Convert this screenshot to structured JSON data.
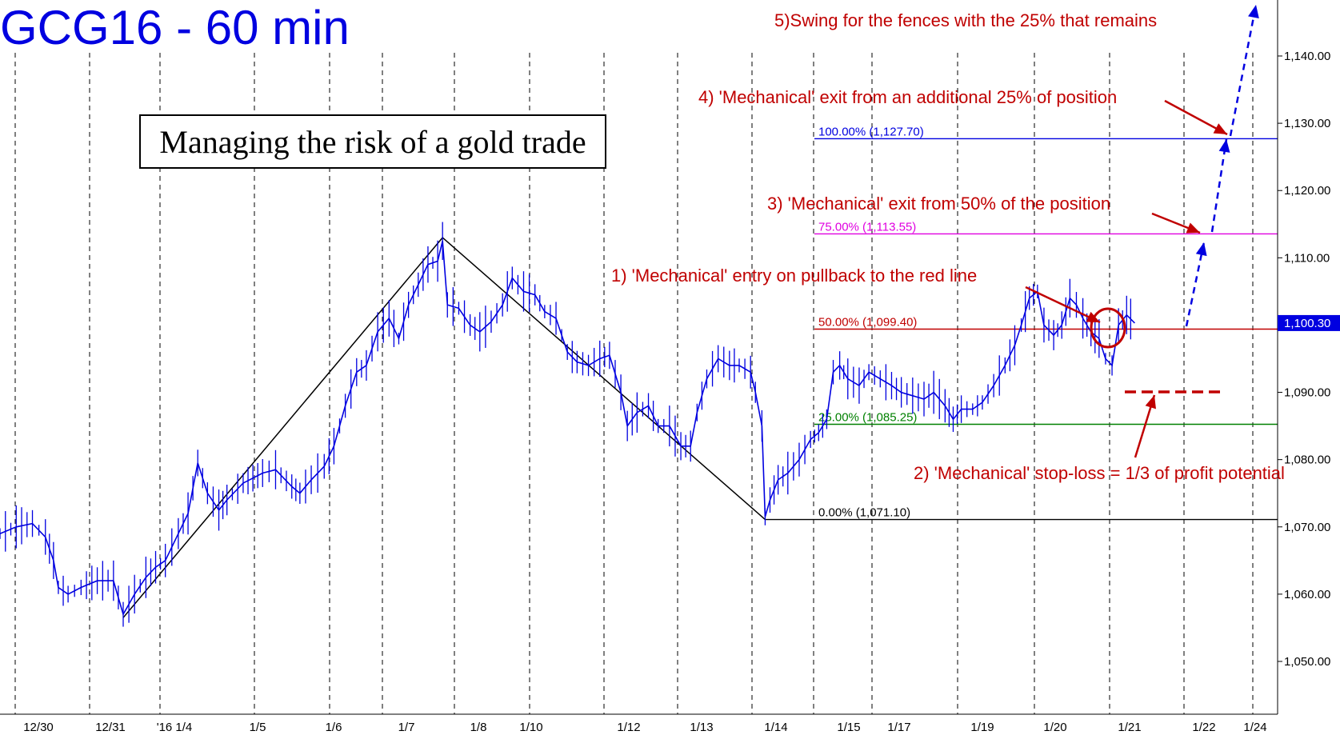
{
  "chart_data": {
    "type": "line",
    "title": "GCG16 - 60 min",
    "ylim": [
      1041,
      1151
    ],
    "y_ticks": [
      {
        "value": 1140,
        "label": "1,140.00"
      },
      {
        "value": 1130,
        "label": "1,130.00"
      },
      {
        "value": 1120,
        "label": "1,120.00"
      },
      {
        "value": 1110,
        "label": "1,110.00"
      },
      {
        "value": 1100,
        "label": "1,100.00"
      },
      {
        "value": 1090,
        "label": "1,090.00"
      },
      {
        "value": 1080,
        "label": "1,080.00"
      },
      {
        "value": 1070,
        "label": "1,070.00"
      },
      {
        "value": 1060,
        "label": "1,060.00"
      },
      {
        "value": 1050,
        "label": "1,050.00"
      }
    ],
    "x_ticks": [
      "12/30",
      "12/31",
      "'16 1/4",
      "1/5",
      "1/6",
      "1/7",
      "1/8",
      "1/10",
      "1/12",
      "1/13",
      "1/14",
      "1/15",
      "1/17",
      "1/19",
      "1/20",
      "1/21",
      "1/22",
      "1/24"
    ],
    "last_price": {
      "value": 1100.3,
      "label": "1,100.30"
    },
    "fib_levels": [
      {
        "label": "100.00% (1,127.70)",
        "value": 1127.7,
        "color": "#0000e0"
      },
      {
        "label": "75.00% (1,113.55)",
        "value": 1113.55,
        "color": "#e000e0"
      },
      {
        "label": "50.00% (1,099.40)",
        "value": 1099.4,
        "color": "#c00000"
      },
      {
        "label": "25.00% (1,085.25)",
        "value": 1085.25,
        "color": "#008000"
      },
      {
        "label": "0.00% (1,071.10)",
        "value": 1071.1,
        "color": "#000000"
      }
    ],
    "swing_points": [
      {
        "x": 7.6,
        "y": 1056.5
      },
      {
        "x": 27.3,
        "y": 1113.0
      },
      {
        "x": 47.2,
        "y": 1071.1
      }
    ],
    "price_path": [
      [
        0,
        1069
      ],
      [
        1,
        1070
      ],
      [
        2,
        1070.5
      ],
      [
        2.8,
        1068.5
      ],
      [
        3.3,
        1065
      ],
      [
        3.6,
        1061
      ],
      [
        4.2,
        1060
      ],
      [
        5,
        1061
      ],
      [
        6,
        1062
      ],
      [
        7,
        1062
      ],
      [
        7.6,
        1057
      ],
      [
        8.3,
        1060
      ],
      [
        9,
        1062.5
      ],
      [
        9.6,
        1064
      ],
      [
        10.2,
        1065
      ],
      [
        11,
        1069
      ],
      [
        11.6,
        1072
      ],
      [
        12.2,
        1079.5
      ],
      [
        12.8,
        1075
      ],
      [
        13.5,
        1072.5
      ],
      [
        14,
        1074
      ],
      [
        15,
        1076.5
      ],
      [
        16.2,
        1078
      ],
      [
        17,
        1078.5
      ],
      [
        18,
        1076
      ],
      [
        18.5,
        1075
      ],
      [
        19.2,
        1077
      ],
      [
        20,
        1079
      ],
      [
        20.6,
        1082
      ],
      [
        21.3,
        1088
      ],
      [
        22,
        1093
      ],
      [
        22.6,
        1094
      ],
      [
        23.3,
        1099
      ],
      [
        24,
        1101
      ],
      [
        24.6,
        1098
      ],
      [
        25.2,
        1103
      ],
      [
        25.8,
        1106
      ],
      [
        26.4,
        1109
      ],
      [
        27,
        1109.5
      ],
      [
        27.3,
        1112.5
      ],
      [
        27.6,
        1103
      ],
      [
        28.3,
        1102.5
      ],
      [
        29,
        1100
      ],
      [
        29.6,
        1099
      ],
      [
        30.3,
        1100.5
      ],
      [
        31,
        1103
      ],
      [
        31.6,
        1107
      ],
      [
        32.3,
        1105
      ],
      [
        33,
        1104.5
      ],
      [
        33.6,
        1102
      ],
      [
        34.3,
        1101
      ],
      [
        35,
        1096
      ],
      [
        35.6,
        1094.5
      ],
      [
        36.3,
        1094
      ],
      [
        37,
        1095
      ],
      [
        37.6,
        1095.5
      ],
      [
        38.3,
        1090
      ],
      [
        38.7,
        1085
      ],
      [
        39.3,
        1087
      ],
      [
        40,
        1088
      ],
      [
        40.6,
        1085
      ],
      [
        41.3,
        1085
      ],
      [
        42,
        1082
      ],
      [
        42.6,
        1082
      ],
      [
        43,
        1087
      ],
      [
        43.6,
        1092
      ],
      [
        44.3,
        1095
      ],
      [
        45,
        1094
      ],
      [
        45.6,
        1094
      ],
      [
        46.3,
        1093
      ],
      [
        46.6,
        1090
      ],
      [
        47,
        1085
      ],
      [
        47.2,
        1071.5
      ],
      [
        47.5,
        1074
      ],
      [
        48,
        1077
      ],
      [
        48.6,
        1078
      ],
      [
        49.3,
        1080
      ],
      [
        50,
        1083
      ],
      [
        50.5,
        1084
      ],
      [
        51,
        1086
      ],
      [
        51.4,
        1093
      ],
      [
        51.8,
        1094
      ],
      [
        52.3,
        1092
      ],
      [
        53,
        1091
      ],
      [
        53.6,
        1093
      ],
      [
        54.3,
        1092
      ],
      [
        55,
        1091
      ],
      [
        55.6,
        1090
      ],
      [
        56.3,
        1089.5
      ],
      [
        57,
        1089
      ],
      [
        57.6,
        1090
      ],
      [
        58.3,
        1088
      ],
      [
        58.8,
        1086
      ],
      [
        59.3,
        1087.5
      ],
      [
        60,
        1087.5
      ],
      [
        60.6,
        1088.5
      ],
      [
        61.3,
        1091
      ],
      [
        62,
        1094
      ],
      [
        62.6,
        1097
      ],
      [
        63,
        1100
      ],
      [
        63.5,
        1104
      ],
      [
        64,
        1105
      ],
      [
        64.4,
        1100
      ],
      [
        65,
        1098.5
      ],
      [
        65.5,
        1100
      ],
      [
        66,
        1104
      ],
      [
        66.4,
        1103
      ],
      [
        66.8,
        1101
      ],
      [
        67.3,
        1099
      ],
      [
        67.8,
        1098
      ],
      [
        68.2,
        1095
      ],
      [
        68.6,
        1094
      ],
      [
        69,
        1100
      ],
      [
        69.5,
        1101.5
      ],
      [
        70,
        1100.3
      ]
    ]
  },
  "annotations": {
    "box_title": "Managing the risk of a gold trade",
    "note1": "1) 'Mechanical' entry on pullback to the red line",
    "note2": "2) 'Mechanical' stop-loss = 1/3 of profit potential",
    "note3": "3) 'Mechanical' exit from 50% of the position",
    "note4": "4) 'Mechanical' exit from an additional 25% of position",
    "note5": "5)Swing for the fences with the 25% that remains"
  },
  "colors": {
    "price": "#0000e0",
    "annotation": "#c00000",
    "title": "#0000e0",
    "grid": "#000000"
  }
}
